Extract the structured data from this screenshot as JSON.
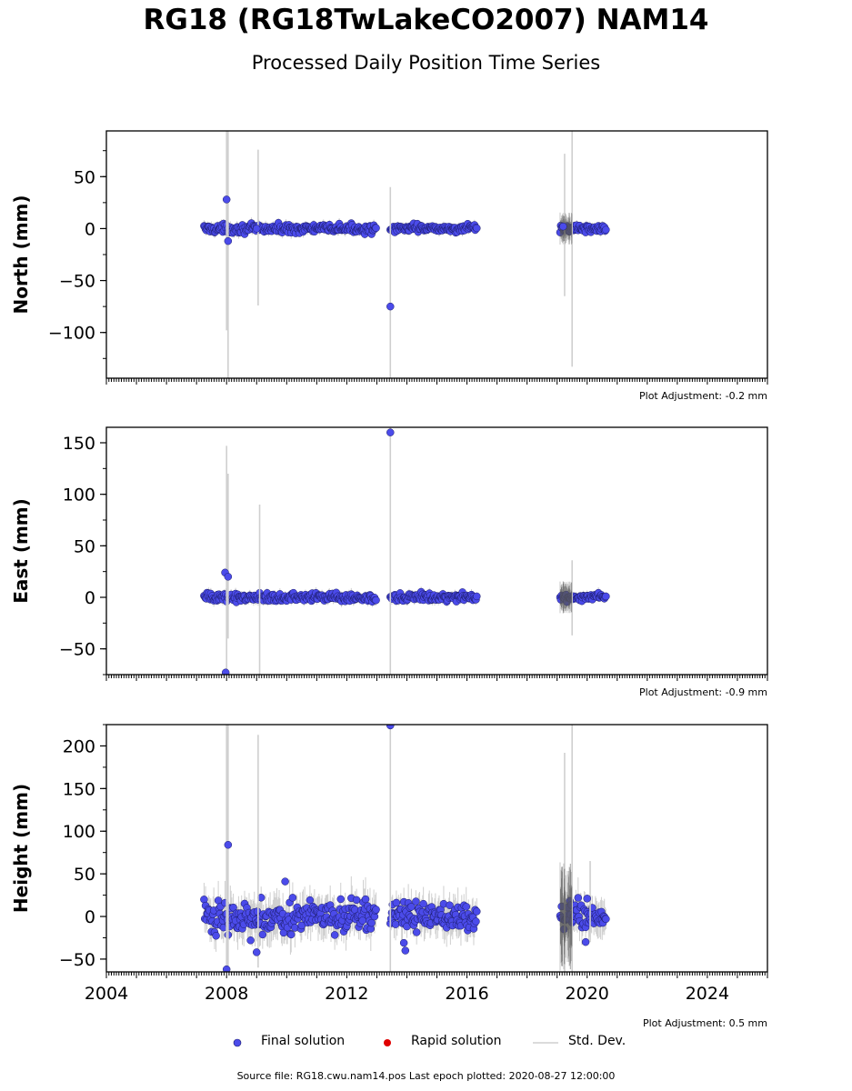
{
  "title": "RG18 (RG18TwLakeCO2007) NAM14",
  "subtitle": "Processed Daily Position Time Series",
  "source_text": "Source file: RG18.cwu.nam14.pos  Last epoch plotted: 2020-08-27 12:00:00",
  "legend": {
    "final": "Final solution",
    "rapid": "Rapid solution",
    "std": "Std. Dev."
  },
  "colors": {
    "final": "#4b4bea",
    "final_edge": "#1a1a66",
    "rapid": "#e00000",
    "std": "#cfcfcf",
    "std_dense": "#555555"
  },
  "chart_data": [
    {
      "type": "scatter",
      "ylabel": "North (mm)",
      "adjustment": "Plot Adjustment: -0.2 mm",
      "xlim": [
        2004,
        2026
      ],
      "ylim": [
        -144,
        94
      ],
      "yticks": [
        -100,
        -50,
        0,
        50
      ],
      "xticks": [
        2004,
        2008,
        2012,
        2016,
        2020,
        2024
      ],
      "segments": [
        {
          "start": 2007.25,
          "end": 2013.0,
          "step": 0.025,
          "noise": 2
        },
        {
          "start": 2013.45,
          "end": 2016.35,
          "step": 0.025,
          "noise": 1.8
        },
        {
          "start": 2019.1,
          "end": 2020.65,
          "step": 0.025,
          "noise": 1.8
        }
      ],
      "outliers": [
        {
          "x": 2008.0,
          "y": 28
        },
        {
          "x": 2008.05,
          "y": -12
        },
        {
          "x": 2013.45,
          "y": -75
        },
        {
          "x": 2009.0,
          "y": 0
        },
        {
          "x": 2019.2,
          "y": 2
        }
      ],
      "error_bars": [
        {
          "x": 2008.0,
          "lo": -98,
          "hi": 94
        },
        {
          "x": 2008.05,
          "lo": -144,
          "hi": 94
        },
        {
          "x": 2009.05,
          "lo": -74,
          "hi": 76
        },
        {
          "x": 2013.45,
          "lo": -144,
          "hi": 40
        },
        {
          "x": 2019.25,
          "lo": -65,
          "hi": 72
        },
        {
          "x": 2019.5,
          "lo": -133,
          "hi": 94
        }
      ]
    },
    {
      "type": "scatter",
      "ylabel": "East (mm)",
      "adjustment": "Plot Adjustment: -0.9 mm",
      "xlim": [
        2004,
        2026
      ],
      "ylim": [
        -75,
        165
      ],
      "yticks": [
        -50,
        0,
        50,
        100,
        150
      ],
      "xticks": [
        2004,
        2008,
        2012,
        2016,
        2020,
        2024
      ],
      "segments": [
        {
          "start": 2007.25,
          "end": 2013.0,
          "step": 0.025,
          "noise": 2
        },
        {
          "start": 2013.45,
          "end": 2016.35,
          "step": 0.025,
          "noise": 2
        },
        {
          "start": 2019.1,
          "end": 2020.65,
          "step": 0.025,
          "noise": 1.8
        }
      ],
      "outliers": [
        {
          "x": 2007.95,
          "y": 24
        },
        {
          "x": 2008.05,
          "y": 20
        },
        {
          "x": 2007.97,
          "y": -73
        },
        {
          "x": 2013.45,
          "y": 160
        }
      ],
      "error_bars": [
        {
          "x": 2008.0,
          "lo": -75,
          "hi": 147
        },
        {
          "x": 2008.05,
          "lo": -40,
          "hi": 120
        },
        {
          "x": 2009.1,
          "lo": -75,
          "hi": 90
        },
        {
          "x": 2013.45,
          "lo": -75,
          "hi": 165
        },
        {
          "x": 2019.5,
          "lo": -37,
          "hi": 36
        }
      ]
    },
    {
      "type": "scatter",
      "ylabel": "Height (mm)",
      "adjustment": "Plot Adjustment: 0.5 mm",
      "xlim": [
        2004,
        2026
      ],
      "ylim": [
        -65,
        225
      ],
      "yticks": [
        -50,
        0,
        50,
        100,
        150,
        200
      ],
      "xticks": [
        2004,
        2008,
        2012,
        2016,
        2020,
        2024
      ],
      "segments": [
        {
          "start": 2007.25,
          "end": 2013.0,
          "step": 0.025,
          "noise": 9
        },
        {
          "start": 2013.45,
          "end": 2016.35,
          "step": 0.025,
          "noise": 8
        },
        {
          "start": 2019.1,
          "end": 2020.65,
          "step": 0.025,
          "noise": 8
        }
      ],
      "outliers": [
        {
          "x": 2008.05,
          "y": 84
        },
        {
          "x": 2008.0,
          "y": -62
        },
        {
          "x": 2009.0,
          "y": -42
        },
        {
          "x": 2008.8,
          "y": -28
        },
        {
          "x": 2009.95,
          "y": 41
        },
        {
          "x": 2013.45,
          "y": 224
        },
        {
          "x": 2013.95,
          "y": -40
        },
        {
          "x": 2013.9,
          "y": -31
        },
        {
          "x": 2020.0,
          "y": 21
        },
        {
          "x": 2019.95,
          "y": -30
        }
      ],
      "error_bars": [
        {
          "x": 2008.0,
          "lo": -65,
          "hi": 225
        },
        {
          "x": 2008.05,
          "lo": -65,
          "hi": 225
        },
        {
          "x": 2009.05,
          "lo": -60,
          "hi": 213
        },
        {
          "x": 2013.45,
          "lo": -65,
          "hi": 225
        },
        {
          "x": 2019.25,
          "lo": -65,
          "hi": 192
        },
        {
          "x": 2019.5,
          "lo": -65,
          "hi": 225
        },
        {
          "x": 2020.1,
          "lo": -30,
          "hi": 65
        }
      ]
    }
  ]
}
